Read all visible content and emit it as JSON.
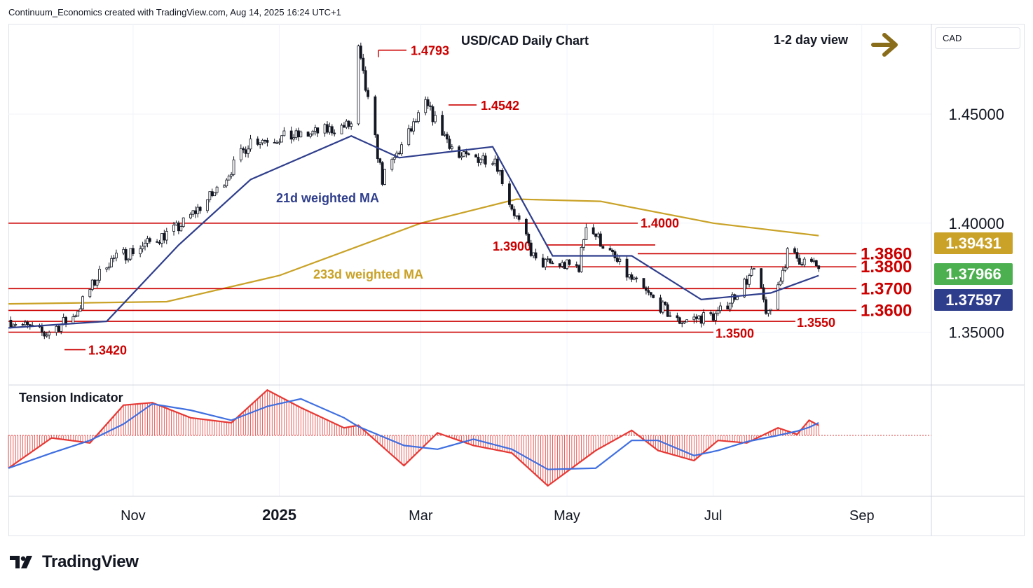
{
  "header": {
    "attribution": "Continuum_Economics created with TradingView.com, Aug 14, 2025 16:24 UTC+1"
  },
  "branding": {
    "logo_text": "TradingView"
  },
  "currency_button": {
    "label": "CAD"
  },
  "chart_data": {
    "type": "candlestick",
    "title": "USD/CAD Daily Chart",
    "view_label": "1-2 day view",
    "view_arrow": "right-arrow-icon",
    "x_ticks": [
      {
        "label": "Nov",
        "date": "2024-11-01"
      },
      {
        "label": "2025",
        "date": "2025-01-01"
      },
      {
        "label": "Mar",
        "date": "2025-03-01"
      },
      {
        "label": "May",
        "date": "2025-05-01"
      },
      {
        "label": "Jul",
        "date": "2025-07-01"
      },
      {
        "label": "Sep",
        "date": "2025-09-01"
      }
    ],
    "y_ticks": [
      "1.45000",
      "1.40000",
      "1.35000"
    ],
    "y_range": [
      1.3258,
      1.4914
    ],
    "x_range": [
      "2024-09-10",
      "2025-09-30"
    ],
    "grid": true,
    "colors": {
      "up": "#131722",
      "down": "#131722",
      "up_fill": "#ffffff",
      "ma21": "#2f3e8c",
      "ma233": "#c9a227",
      "levels": "#cc0000",
      "osc_fast": "#e53935",
      "osc_slow": "#3f6fe0"
    },
    "price_path": [
      [
        "2024-09-10",
        1.356
      ],
      [
        "2024-09-25",
        1.349
      ],
      [
        "2024-10-07",
        1.357
      ],
      [
        "2024-10-21",
        1.382
      ],
      [
        "2024-11-06",
        1.39
      ],
      [
        "2024-11-20",
        1.398
      ],
      [
        "2024-12-06",
        1.415
      ],
      [
        "2024-12-20",
        1.438
      ],
      [
        "2025-01-10",
        1.44
      ],
      [
        "2025-01-31",
        1.445
      ],
      [
        "2025-02-03",
        1.4793
      ],
      [
        "2025-02-13",
        1.42
      ],
      [
        "2025-03-03",
        1.4542
      ],
      [
        "2025-03-17",
        1.43
      ],
      [
        "2025-04-01",
        1.43
      ],
      [
        "2025-04-07",
        1.41
      ],
      [
        "2025-04-18",
        1.382
      ],
      [
        "2025-05-06",
        1.38
      ],
      [
        "2025-05-09",
        1.4
      ],
      [
        "2025-05-27",
        1.375
      ],
      [
        "2025-06-16",
        1.355
      ],
      [
        "2025-07-03",
        1.358
      ],
      [
        "2025-07-18",
        1.378
      ],
      [
        "2025-07-24",
        1.357
      ],
      [
        "2025-08-01",
        1.386
      ],
      [
        "2025-08-14",
        1.3797
      ]
    ],
    "ma21_path": [
      [
        "2024-09-10",
        1.352
      ],
      [
        "2024-10-21",
        1.355
      ],
      [
        "2024-11-20",
        1.39
      ],
      [
        "2024-12-20",
        1.42
      ],
      [
        "2025-01-31",
        1.44
      ],
      [
        "2025-02-20",
        1.43
      ],
      [
        "2025-03-31",
        1.435
      ],
      [
        "2025-04-25",
        1.385
      ],
      [
        "2025-05-28",
        1.385
      ],
      [
        "2025-06-26",
        1.365
      ],
      [
        "2025-07-25",
        1.368
      ],
      [
        "2025-08-14",
        1.376
      ]
    ],
    "ma233_path": [
      [
        "2024-09-10",
        1.363
      ],
      [
        "2024-11-15",
        1.364
      ],
      [
        "2025-01-01",
        1.376
      ],
      [
        "2025-03-01",
        1.4
      ],
      [
        "2025-04-10",
        1.411
      ],
      [
        "2025-05-15",
        1.41
      ],
      [
        "2025-07-01",
        1.4
      ],
      [
        "2025-08-14",
        1.3943
      ]
    ],
    "levels": [
      {
        "label": "1.4793",
        "value": 1.4793,
        "end_label": true,
        "font": "small"
      },
      {
        "label": "1.4542",
        "value": 1.4542,
        "end_label": true,
        "font": "small"
      },
      {
        "label": "1.4000",
        "value": 1.4,
        "end_label": true,
        "font": "small"
      },
      {
        "label": "1.3900",
        "value": 1.39,
        "end_label": false,
        "font": "small"
      },
      {
        "label": "1.3860",
        "value": 1.386,
        "end_label": true,
        "font": "large"
      },
      {
        "label": "1.3800",
        "value": 1.38,
        "end_label": true,
        "font": "large"
      },
      {
        "label": "1.3700",
        "value": 1.37,
        "end_label": true,
        "font": "large"
      },
      {
        "label": "1.3600",
        "value": 1.36,
        "end_label": true,
        "font": "large"
      },
      {
        "label": "1.3550",
        "value": 1.355,
        "end_label": true,
        "font": "small"
      },
      {
        "label": "1.3500",
        "value": 1.35,
        "end_label": true,
        "font": "small"
      },
      {
        "label": "1.3420",
        "value": 1.342,
        "end_label": true,
        "font": "small"
      }
    ],
    "annotations": [
      {
        "text": "21d weighted MA",
        "series": "ma21"
      },
      {
        "text": "233d weighted MA",
        "series": "ma233"
      }
    ],
    "price_tags": [
      {
        "value": "1.39431",
        "color": "#c9a227"
      },
      {
        "value": "1.37966",
        "color": "#4caf50"
      },
      {
        "value": "1.37597",
        "color": "#2f3e8c"
      }
    ],
    "indicator": {
      "title": "Tension Indicator",
      "path": [
        [
          "2024-09-10",
          -0.65
        ],
        [
          "2024-09-28",
          -0.05
        ],
        [
          "2024-10-14",
          -0.15
        ],
        [
          "2024-10-28",
          0.6
        ],
        [
          "2024-11-09",
          0.65
        ],
        [
          "2024-11-25",
          0.35
        ],
        [
          "2024-12-12",
          0.25
        ],
        [
          "2024-12-27",
          0.9
        ],
        [
          "2025-01-10",
          0.55
        ],
        [
          "2025-01-28",
          0.15
        ],
        [
          "2025-02-03",
          0.2
        ],
        [
          "2025-02-22",
          -0.6
        ],
        [
          "2025-03-08",
          0.05
        ],
        [
          "2025-03-23",
          -0.2
        ],
        [
          "2025-04-08",
          -0.35
        ],
        [
          "2025-04-23",
          -1.0
        ],
        [
          "2025-05-13",
          -0.3
        ],
        [
          "2025-05-28",
          0.1
        ],
        [
          "2025-06-08",
          -0.3
        ],
        [
          "2025-06-23",
          -0.5
        ],
        [
          "2025-07-03",
          -0.1
        ],
        [
          "2025-07-15",
          -0.15
        ],
        [
          "2025-07-28",
          0.15
        ],
        [
          "2025-08-05",
          0.02
        ],
        [
          "2025-08-10",
          0.3
        ],
        [
          "2025-08-14",
          0.2
        ]
      ]
    }
  }
}
